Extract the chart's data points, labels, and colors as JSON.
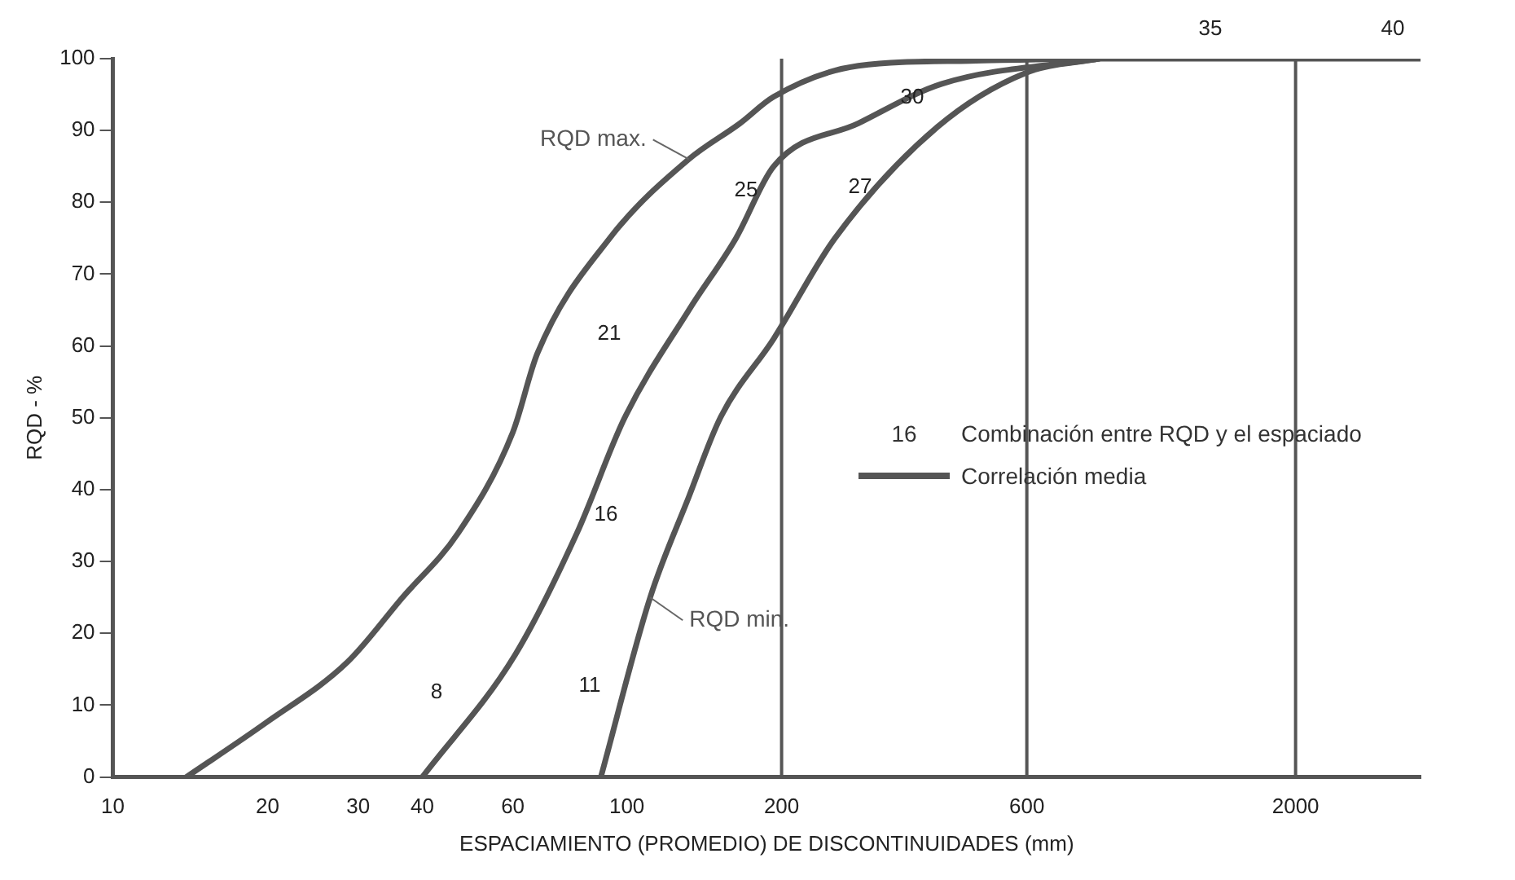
{
  "chart_data": {
    "type": "line",
    "xlabel": "ESPACIAMIENTO (PROMEDIO) DE DISCONTINUIDADES (mm)",
    "ylabel": "RQD - %",
    "log": "x",
    "xlim": [
      10,
      3500
    ],
    "xticks": [
      10,
      20,
      30,
      40,
      60,
      100,
      200,
      600,
      2000
    ],
    "ylim": [
      0,
      100
    ],
    "yticks": [
      0,
      10,
      20,
      30,
      40,
      50,
      60,
      70,
      80,
      90,
      100
    ],
    "grid": false,
    "legend": "right",
    "marker": "none",
    "line_style": "solid",
    "series": [
      {
        "name": "RQD max.",
        "color": "#555555",
        "x": [
          13.9,
          19.8,
          28.6,
          36.6,
          47,
          60,
          67,
          92.6,
          132,
          166,
          193,
          282,
          465,
          828,
          3500
        ],
        "values": [
          0,
          7.5,
          16,
          25,
          34,
          48,
          59,
          75,
          86,
          91,
          94.7,
          99,
          99.7,
          100,
          100
        ]
      },
      {
        "name": "Correlación media",
        "color": "#555555",
        "x": [
          40,
          60.6,
          80,
          99,
          132,
          163,
          193,
          282,
          410,
          828
        ],
        "values": [
          0,
          17,
          34,
          50,
          65,
          75,
          85,
          91,
          96.5,
          100
        ]
      },
      {
        "name": "RQD min.",
        "color": "#555555",
        "x": [
          89,
          111,
          132,
          152,
          193,
          254,
          402,
          596,
          828
        ],
        "values": [
          0,
          25,
          39,
          50,
          61,
          75,
          90.5,
          98,
          100
        ]
      }
    ],
    "ref_lines": [
      {
        "axis": "x",
        "value": 200,
        "color": "#555555"
      },
      {
        "axis": "x",
        "value": 600,
        "color": "#555555"
      },
      {
        "axis": "x",
        "value": 2000,
        "color": "#555555"
      }
    ],
    "annotations": [
      "8",
      "11",
      "16",
      "21",
      "25",
      "27",
      "30",
      "35",
      "40",
      "16 Combinación entre RQD y el espaciado"
    ]
  }
}
